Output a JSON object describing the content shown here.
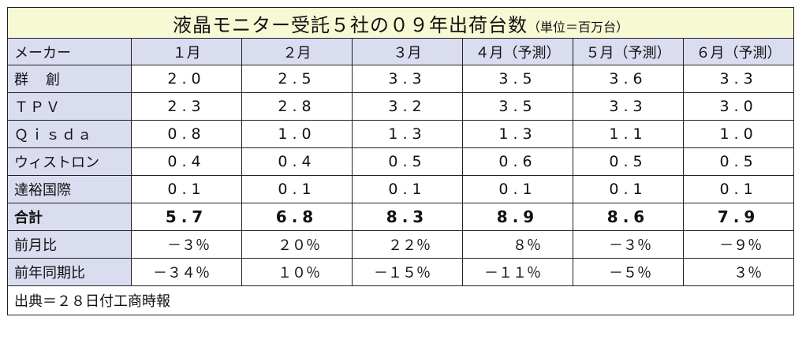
{
  "title": {
    "main": "液晶モニター受託５社の０９年出荷台数",
    "unit": "（単位＝百万台）"
  },
  "header": [
    "メーカー",
    "１月",
    "２月",
    "３月",
    "４月（予測）",
    "５月（予測）",
    "６月（予測）"
  ],
  "rows": [
    {
      "name": "群　創",
      "values": [
        "2.0",
        "2.5",
        "3.3",
        "3.5",
        "3.6",
        "3.3"
      ]
    },
    {
      "name": "ＴＰＶ",
      "values": [
        "2.3",
        "2.8",
        "3.2",
        "3.5",
        "3.3",
        "3.0"
      ]
    },
    {
      "name": "Ｑｉｓｄａ",
      "values": [
        "0.8",
        "1.0",
        "1.3",
        "1.3",
        "1.1",
        "1.0"
      ]
    },
    {
      "name": "ウィストロン",
      "values": [
        "0.4",
        "0.4",
        "0.5",
        "0.6",
        "0.5",
        "0.5"
      ]
    },
    {
      "name": "達裕国際",
      "values": [
        "0.1",
        "0.1",
        "0.1",
        "0.1",
        "0.1",
        "0.1"
      ]
    }
  ],
  "total": {
    "name": "合計",
    "values": [
      "5.7",
      "6.8",
      "8.3",
      "8.9",
      "8.6",
      "7.9"
    ]
  },
  "mom": {
    "name": "前月比",
    "values": [
      "－３％",
      "２０％",
      "２２％",
      "８％",
      "－３％",
      "－９％"
    ]
  },
  "yoy": {
    "name": "前年同期比",
    "values": [
      "－３４％",
      "１０％",
      "－１５％",
      "－１１％",
      "－５％",
      "３％"
    ]
  },
  "footer": "出典＝２８日付工商時報"
}
